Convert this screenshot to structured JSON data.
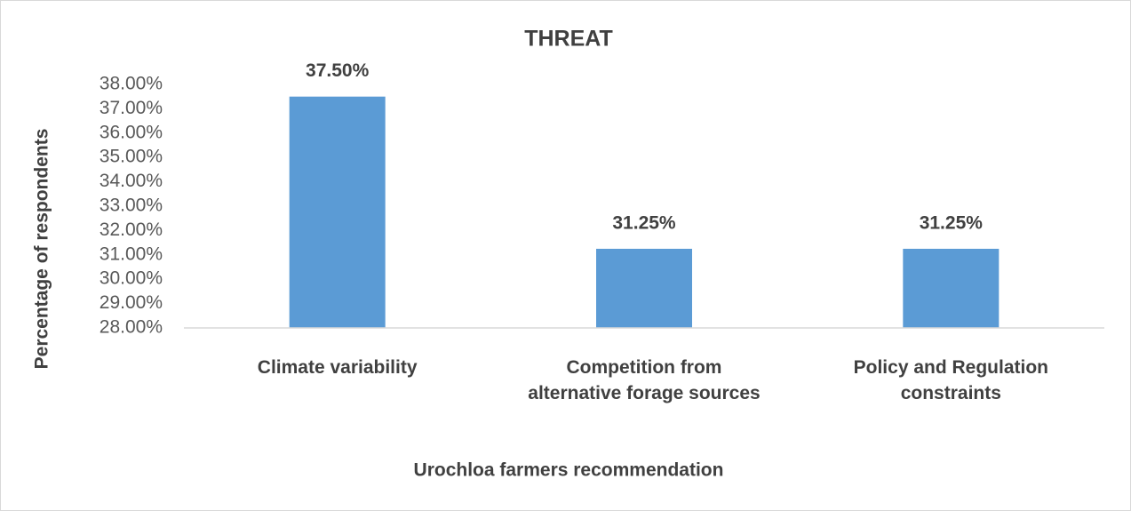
{
  "chart_data": {
    "type": "bar",
    "title": "THREAT",
    "x_label": "Urochloa farmers recommendation",
    "y_label": "Percentage of respondents",
    "categories": [
      "Climate variability",
      "Competition from alternative forage sources",
      "Policy and Regulation constraints"
    ],
    "values": [
      37.5,
      31.25,
      31.25
    ],
    "value_labels": [
      "37.50%",
      "31.25%",
      "31.25%"
    ],
    "color": "#5b9bd5",
    "ylim": [
      28,
      38
    ],
    "yticks": [
      {
        "value": 28,
        "label": "28.00%"
      },
      {
        "value": 29,
        "label": "29.00%"
      },
      {
        "value": 30,
        "label": "30.00%"
      },
      {
        "value": 31,
        "label": "31.00%"
      },
      {
        "value": 32,
        "label": "32.00%"
      },
      {
        "value": 33,
        "label": "33.00%"
      },
      {
        "value": 34,
        "label": "34.00%"
      },
      {
        "value": 35,
        "label": "35.00%"
      },
      {
        "value": 36,
        "label": "36.00%"
      },
      {
        "value": 37,
        "label": "37.00%"
      },
      {
        "value": 38,
        "label": "38.00%"
      }
    ],
    "grid": false
  }
}
